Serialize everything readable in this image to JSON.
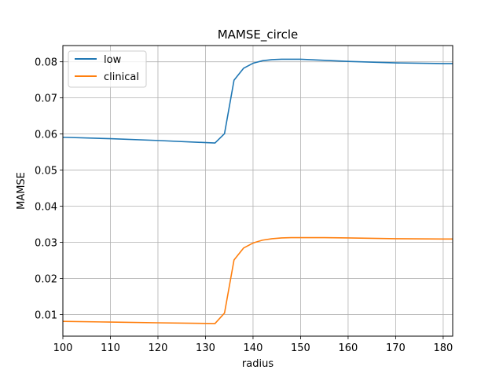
{
  "chart_data": {
    "type": "line",
    "title": "MAMSE_circle",
    "xlabel": "radius",
    "ylabel": "MAMSE",
    "xlim": [
      100,
      182
    ],
    "ylim": [
      0.004,
      0.0845
    ],
    "xticks": [
      100,
      110,
      120,
      130,
      140,
      150,
      160,
      170,
      180
    ],
    "yticks": [
      0.01,
      0.02,
      0.03,
      0.04,
      0.05,
      0.06,
      0.07,
      0.08
    ],
    "ytick_labels": [
      "0.01",
      "0.02",
      "0.03",
      "0.04",
      "0.05",
      "0.06",
      "0.07",
      "0.08"
    ],
    "grid": true,
    "legend_position": "top-left",
    "series": [
      {
        "name": "low",
        "color": "#1f77b4",
        "x": [
          100,
          110,
          120,
          132,
          134,
          136,
          138,
          140,
          142,
          144,
          146,
          148,
          150,
          160,
          170,
          180,
          182
        ],
        "y": [
          0.0591,
          0.0587,
          0.0582,
          0.0575,
          0.0601,
          0.0749,
          0.0782,
          0.0796,
          0.0803,
          0.0806,
          0.0807,
          0.0807,
          0.0807,
          0.0801,
          0.0797,
          0.0795,
          0.0795
        ]
      },
      {
        "name": "clinical",
        "color": "#ff7f0e",
        "x": [
          100,
          110,
          120,
          132,
          134,
          136,
          138,
          140,
          142,
          144,
          146,
          148,
          150,
          155,
          160,
          170,
          180,
          182
        ],
        "y": [
          0.0081,
          0.0079,
          0.0077,
          0.0075,
          0.0104,
          0.0251,
          0.0284,
          0.0298,
          0.0306,
          0.031,
          0.0312,
          0.0313,
          0.0313,
          0.0313,
          0.0312,
          0.031,
          0.0309,
          0.0309
        ]
      }
    ]
  }
}
